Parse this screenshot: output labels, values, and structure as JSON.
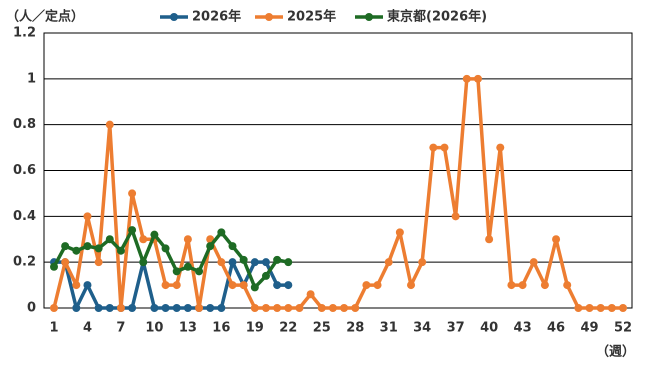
{
  "chart_data": {
    "type": "line",
    "y_label": "（人／定点）",
    "x_label": "（週）",
    "x": [
      1,
      2,
      3,
      4,
      5,
      6,
      7,
      8,
      9,
      10,
      11,
      12,
      13,
      14,
      15,
      16,
      17,
      18,
      19,
      20,
      21,
      22,
      23,
      24,
      25,
      26,
      27,
      28,
      29,
      30,
      31,
      32,
      33,
      34,
      35,
      36,
      37,
      38,
      39,
      40,
      41,
      42,
      43,
      44,
      45,
      46,
      47,
      48,
      49,
      50,
      51,
      52
    ],
    "xlim": [
      1,
      52
    ],
    "xticks": [
      1,
      4,
      7,
      10,
      13,
      16,
      19,
      22,
      25,
      28,
      31,
      34,
      37,
      40,
      43,
      46,
      49,
      52
    ],
    "ylim": [
      0,
      1.2
    ],
    "yticks": [
      0,
      0.2,
      0.4,
      0.6,
      0.8,
      1,
      1.2
    ],
    "grid": true,
    "legend": "top",
    "series": [
      {
        "name": "2026年",
        "color": "#1f5f8b",
        "values": [
          0.2,
          0.2,
          0,
          0.1,
          0,
          0,
          0,
          0,
          0.2,
          0,
          0,
          0,
          0,
          0,
          0,
          0,
          0.2,
          0.1,
          0.2,
          0.2,
          0.1,
          0.1,
          null,
          null,
          null,
          null,
          null,
          null,
          null,
          null,
          null,
          null,
          null,
          null,
          null,
          null,
          null,
          null,
          null,
          null,
          null,
          null,
          null,
          null,
          null,
          null,
          null,
          null,
          null,
          null,
          null,
          null
        ]
      },
      {
        "name": "2025年",
        "color": "#ed7d31",
        "values": [
          0,
          0.2,
          0.1,
          0.4,
          0.2,
          0.8,
          0,
          0.5,
          0.3,
          0.3,
          0.1,
          0.1,
          0.3,
          0,
          0.3,
          0.2,
          0.1,
          0.1,
          0,
          0,
          0,
          0,
          0,
          0.06,
          0,
          0,
          0,
          0,
          0.1,
          0.1,
          0.2,
          0.33,
          0.1,
          0.2,
          0.7,
          0.7,
          0.4,
          1,
          1,
          0.3,
          0.7,
          0.1,
          0.1,
          0.2,
          0.1,
          0.3,
          0.1,
          0,
          0,
          0,
          0,
          0
        ]
      },
      {
        "name": "東京都(2026年)",
        "color": "#1e6b24",
        "values": [
          0.18,
          0.27,
          0.25,
          0.27,
          0.26,
          0.3,
          0.25,
          0.34,
          0.2,
          0.32,
          0.26,
          0.16,
          0.18,
          0.16,
          0.27,
          0.33,
          0.27,
          0.21,
          0.09,
          0.14,
          0.21,
          0.2,
          null,
          null,
          null,
          null,
          null,
          null,
          null,
          null,
          null,
          null,
          null,
          null,
          null,
          null,
          null,
          null,
          null,
          null,
          null,
          null,
          null,
          null,
          null,
          null,
          null,
          null,
          null,
          null,
          null,
          null
        ]
      }
    ]
  }
}
